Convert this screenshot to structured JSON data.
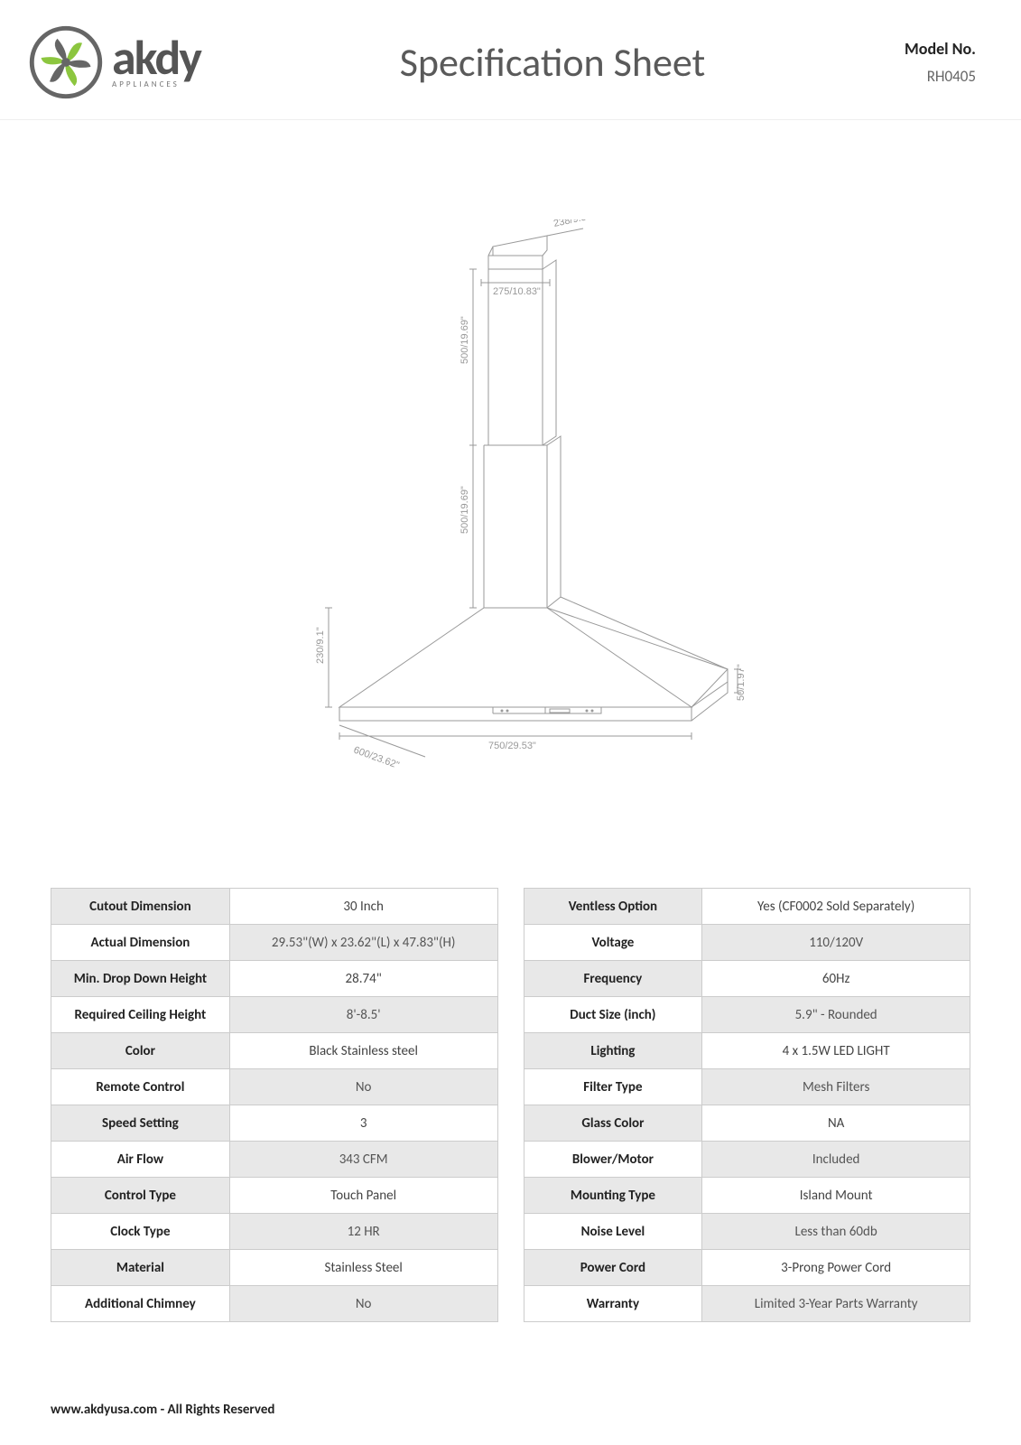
{
  "header": {
    "brand": "akdy",
    "brand_sub": "APPLIANCES",
    "title": "Specification Sheet",
    "model_label": "Model No.",
    "model_value": "RH0405"
  },
  "logo": {
    "ring_color": "#666666",
    "fan_colors": [
      "#8cc63f",
      "#666666"
    ],
    "fan_blade_count": 6
  },
  "diagram": {
    "dim_top_w": "238/9.37\"",
    "dim_upper_w": "275/10.83\"",
    "dim_upper_h": "500/19.69\"",
    "dim_lower_h": "500/19.69\"",
    "dim_hood_h": "230/9.1\"",
    "dim_depth": "600/23.62\"",
    "dim_width": "750/29.53\"",
    "dim_lip": "50/1.97\"",
    "line_color": "#9d9d9d"
  },
  "spec_left": [
    {
      "k": "Cutout Dimension",
      "v": "30 Inch"
    },
    {
      "k": "Actual Dimension",
      "v": "29.53\"(W) x 23.62\"(L) x 47.83\"(H)"
    },
    {
      "k": "Min. Drop Down Height",
      "v": "28.74\""
    },
    {
      "k": "Required Ceiling Height",
      "v": "8'-8.5'"
    },
    {
      "k": "Color",
      "v": "Black Stainless steel"
    },
    {
      "k": "Remote Control",
      "v": "No"
    },
    {
      "k": "Speed Setting",
      "v": "3"
    },
    {
      "k": "Air Flow",
      "v": "343 CFM"
    },
    {
      "k": "Control Type",
      "v": "Touch Panel"
    },
    {
      "k": "Clock Type",
      "v": "12 HR"
    },
    {
      "k": "Material",
      "v": "Stainless Steel"
    },
    {
      "k": "Additional Chimney",
      "v": "No"
    }
  ],
  "spec_right": [
    {
      "k": "Ventless Option",
      "v": "Yes (CF0002 Sold Separately)"
    },
    {
      "k": "Voltage",
      "v": "110/120V"
    },
    {
      "k": "Frequency",
      "v": "60Hz"
    },
    {
      "k": "Duct Size (inch)",
      "v": "5.9\" - Rounded"
    },
    {
      "k": "Lighting",
      "v": "4 x 1.5W LED LIGHT"
    },
    {
      "k": "Filter Type",
      "v": "Mesh Filters"
    },
    {
      "k": "Glass Color",
      "v": "NA"
    },
    {
      "k": "Blower/Motor",
      "v": "Included"
    },
    {
      "k": "Mounting Type",
      "v": "Island Mount"
    },
    {
      "k": "Noise Level",
      "v": "Less than 60db"
    },
    {
      "k": "Power Cord",
      "v": "3-Prong Power Cord"
    },
    {
      "k": "Warranty",
      "v": "Limited 3-Year Parts Warranty"
    }
  ],
  "footer": "www.akdyusa.com - All Rights Reserved"
}
